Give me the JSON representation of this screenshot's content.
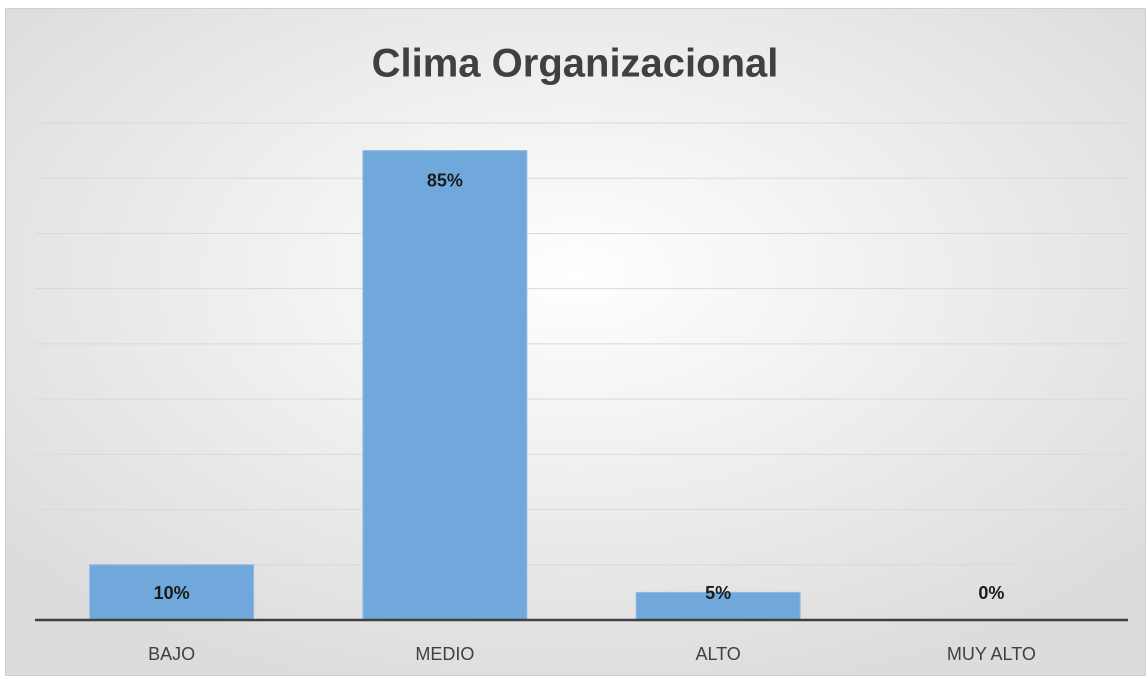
{
  "chart_data": {
    "type": "bar",
    "title": "Clima Organizacional",
    "categories": [
      "BAJO",
      "MEDIO",
      "ALTO",
      "MUY ALTO"
    ],
    "values": [
      10,
      85,
      5,
      0
    ],
    "value_labels": [
      "10%",
      "85%",
      "5%",
      "0%"
    ],
    "color": "#70a8dc",
    "ylim": [
      0,
      90
    ],
    "yticks": [
      0,
      10,
      20,
      30,
      40,
      50,
      60,
      70,
      80,
      90
    ],
    "grid": true
  }
}
